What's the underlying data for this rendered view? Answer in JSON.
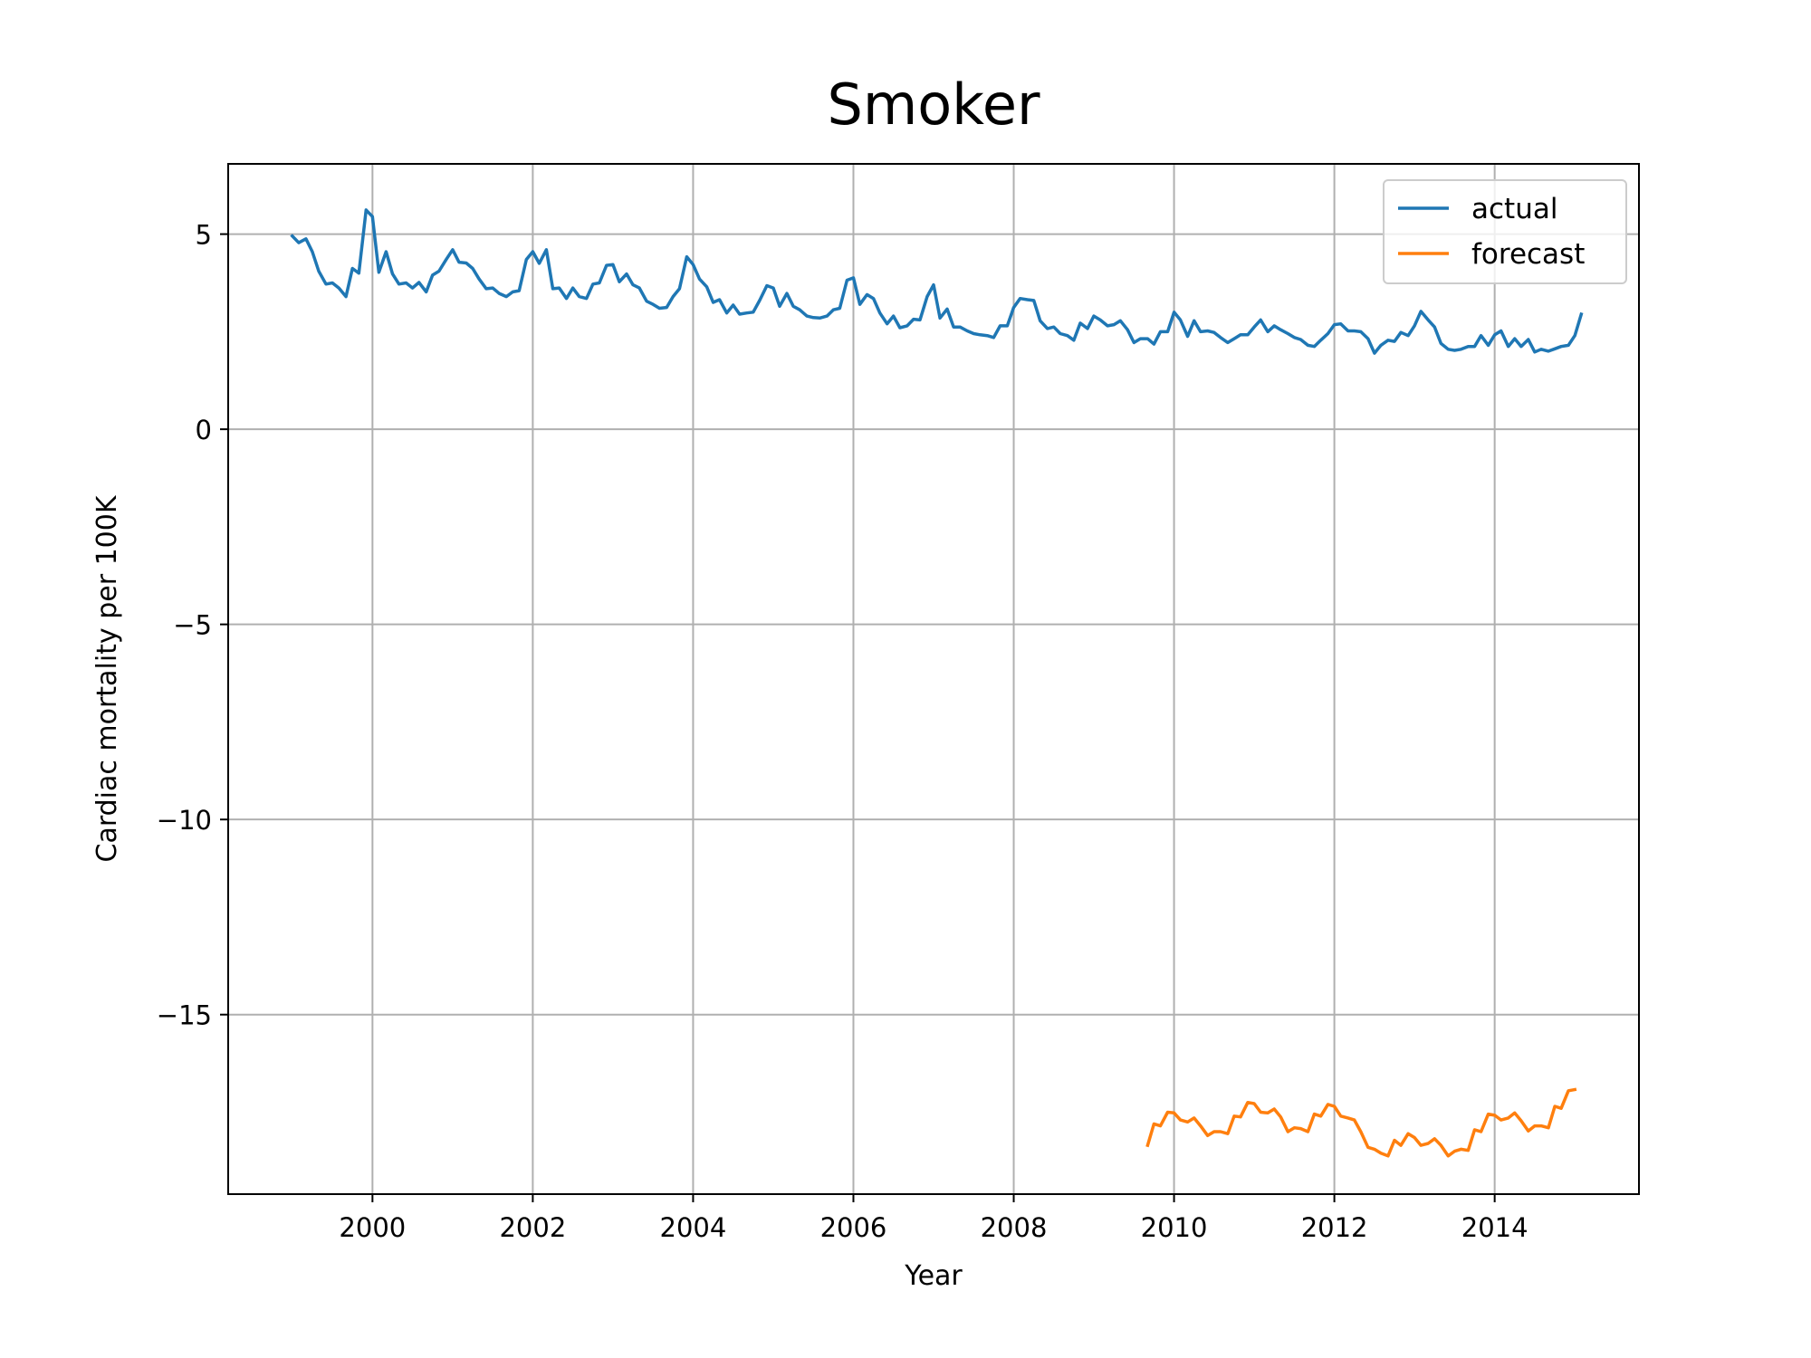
{
  "chart_data": {
    "type": "line",
    "title": "Smoker",
    "xlabel": "Year",
    "ylabel": "Cardiac mortality per 100K",
    "xlim": [
      1998.2,
      2015.8
    ],
    "ylim": [
      -19.6,
      6.8
    ],
    "xticks": [
      2000,
      2002,
      2004,
      2006,
      2008,
      2010,
      2012,
      2014
    ],
    "yticks": [
      5,
      0,
      -5,
      -10,
      -15
    ],
    "ytick_labels": [
      "5",
      "0",
      "−5",
      "−10",
      "−15"
    ],
    "grid": true,
    "legend_position": "top-right",
    "series": [
      {
        "name": "actual",
        "color": "#1f77b4",
        "points": [
          [
            1999.0,
            4.95
          ],
          [
            1999.08,
            4.78
          ],
          [
            1999.17,
            4.88
          ],
          [
            1999.25,
            4.55
          ],
          [
            1999.33,
            4.05
          ],
          [
            1999.42,
            3.72
          ],
          [
            1999.5,
            3.75
          ],
          [
            1999.58,
            3.62
          ],
          [
            1999.67,
            3.4
          ],
          [
            1999.75,
            4.12
          ],
          [
            1999.83,
            4.0
          ],
          [
            1999.92,
            5.62
          ],
          [
            2000.0,
            5.45
          ],
          [
            2000.08,
            4.02
          ],
          [
            2000.17,
            4.55
          ],
          [
            2000.25,
            3.98
          ],
          [
            2000.33,
            3.72
          ],
          [
            2000.42,
            3.75
          ],
          [
            2000.5,
            3.62
          ],
          [
            2000.58,
            3.76
          ],
          [
            2000.67,
            3.52
          ],
          [
            2000.75,
            3.95
          ],
          [
            2000.83,
            4.05
          ],
          [
            2000.92,
            4.35
          ],
          [
            2001.0,
            4.6
          ],
          [
            2001.08,
            4.28
          ],
          [
            2001.17,
            4.26
          ],
          [
            2001.25,
            4.12
          ],
          [
            2001.33,
            3.85
          ],
          [
            2001.42,
            3.6
          ],
          [
            2001.5,
            3.62
          ],
          [
            2001.58,
            3.48
          ],
          [
            2001.67,
            3.4
          ],
          [
            2001.75,
            3.52
          ],
          [
            2001.83,
            3.55
          ],
          [
            2001.92,
            4.35
          ],
          [
            2002.0,
            4.55
          ],
          [
            2002.08,
            4.25
          ],
          [
            2002.17,
            4.6
          ],
          [
            2002.25,
            3.6
          ],
          [
            2002.33,
            3.62
          ],
          [
            2002.42,
            3.35
          ],
          [
            2002.5,
            3.62
          ],
          [
            2002.58,
            3.4
          ],
          [
            2002.67,
            3.35
          ],
          [
            2002.75,
            3.72
          ],
          [
            2002.83,
            3.75
          ],
          [
            2002.92,
            4.2
          ],
          [
            2003.0,
            4.22
          ],
          [
            2003.08,
            3.78
          ],
          [
            2003.17,
            3.98
          ],
          [
            2003.25,
            3.7
          ],
          [
            2003.33,
            3.62
          ],
          [
            2003.42,
            3.28
          ],
          [
            2003.5,
            3.2
          ],
          [
            2003.58,
            3.1
          ],
          [
            2003.67,
            3.12
          ],
          [
            2003.75,
            3.4
          ],
          [
            2003.83,
            3.6
          ],
          [
            2003.92,
            4.42
          ],
          [
            2004.0,
            4.22
          ],
          [
            2004.08,
            3.85
          ],
          [
            2004.17,
            3.65
          ],
          [
            2004.25,
            3.25
          ],
          [
            2004.33,
            3.32
          ],
          [
            2004.42,
            2.98
          ],
          [
            2004.5,
            3.18
          ],
          [
            2004.58,
            2.95
          ],
          [
            2004.67,
            2.98
          ],
          [
            2004.75,
            3.0
          ],
          [
            2004.83,
            3.3
          ],
          [
            2004.92,
            3.68
          ],
          [
            2005.0,
            3.62
          ],
          [
            2005.08,
            3.15
          ],
          [
            2005.17,
            3.48
          ],
          [
            2005.25,
            3.15
          ],
          [
            2005.33,
            3.06
          ],
          [
            2005.42,
            2.9
          ],
          [
            2005.5,
            2.86
          ],
          [
            2005.58,
            2.85
          ],
          [
            2005.67,
            2.9
          ],
          [
            2005.75,
            3.06
          ],
          [
            2005.83,
            3.1
          ],
          [
            2005.92,
            3.82
          ],
          [
            2006.0,
            3.88
          ],
          [
            2006.08,
            3.2
          ],
          [
            2006.17,
            3.45
          ],
          [
            2006.25,
            3.35
          ],
          [
            2006.33,
            2.98
          ],
          [
            2006.42,
            2.7
          ],
          [
            2006.5,
            2.9
          ],
          [
            2006.58,
            2.6
          ],
          [
            2006.67,
            2.65
          ],
          [
            2006.75,
            2.82
          ],
          [
            2006.83,
            2.8
          ],
          [
            2006.92,
            3.4
          ],
          [
            2007.0,
            3.7
          ],
          [
            2007.08,
            2.85
          ],
          [
            2007.17,
            3.08
          ],
          [
            2007.25,
            2.62
          ],
          [
            2007.33,
            2.62
          ],
          [
            2007.42,
            2.52
          ],
          [
            2007.5,
            2.45
          ],
          [
            2007.58,
            2.42
          ],
          [
            2007.67,
            2.4
          ],
          [
            2007.75,
            2.35
          ],
          [
            2007.83,
            2.65
          ],
          [
            2007.92,
            2.65
          ],
          [
            2008.0,
            3.12
          ],
          [
            2008.08,
            3.35
          ],
          [
            2008.17,
            3.32
          ],
          [
            2008.25,
            3.3
          ],
          [
            2008.33,
            2.78
          ],
          [
            2008.42,
            2.58
          ],
          [
            2008.5,
            2.62
          ],
          [
            2008.58,
            2.45
          ],
          [
            2008.67,
            2.4
          ],
          [
            2008.75,
            2.28
          ],
          [
            2008.83,
            2.72
          ],
          [
            2008.92,
            2.58
          ],
          [
            2009.0,
            2.9
          ],
          [
            2009.08,
            2.8
          ],
          [
            2009.17,
            2.65
          ],
          [
            2009.25,
            2.68
          ],
          [
            2009.33,
            2.78
          ],
          [
            2009.42,
            2.55
          ],
          [
            2009.5,
            2.22
          ],
          [
            2009.58,
            2.32
          ],
          [
            2009.67,
            2.32
          ],
          [
            2009.75,
            2.18
          ],
          [
            2009.83,
            2.5
          ],
          [
            2009.92,
            2.5
          ],
          [
            2010.0,
            3.0
          ],
          [
            2010.08,
            2.8
          ],
          [
            2010.17,
            2.38
          ],
          [
            2010.25,
            2.78
          ],
          [
            2010.33,
            2.5
          ],
          [
            2010.42,
            2.52
          ],
          [
            2010.5,
            2.48
          ],
          [
            2010.58,
            2.35
          ],
          [
            2010.67,
            2.22
          ],
          [
            2010.75,
            2.32
          ],
          [
            2010.83,
            2.42
          ],
          [
            2010.92,
            2.42
          ],
          [
            2011.0,
            2.62
          ],
          [
            2011.08,
            2.8
          ],
          [
            2011.17,
            2.5
          ],
          [
            2011.25,
            2.65
          ],
          [
            2011.33,
            2.55
          ],
          [
            2011.42,
            2.45
          ],
          [
            2011.5,
            2.35
          ],
          [
            2011.58,
            2.3
          ],
          [
            2011.67,
            2.15
          ],
          [
            2011.75,
            2.12
          ],
          [
            2011.83,
            2.28
          ],
          [
            2011.92,
            2.45
          ],
          [
            2012.0,
            2.68
          ],
          [
            2012.08,
            2.7
          ],
          [
            2012.17,
            2.52
          ],
          [
            2012.25,
            2.52
          ],
          [
            2012.33,
            2.5
          ],
          [
            2012.42,
            2.32
          ],
          [
            2012.5,
            1.95
          ],
          [
            2012.58,
            2.15
          ],
          [
            2012.67,
            2.28
          ],
          [
            2012.75,
            2.25
          ],
          [
            2012.83,
            2.48
          ],
          [
            2012.92,
            2.4
          ],
          [
            2013.0,
            2.65
          ],
          [
            2013.08,
            3.02
          ],
          [
            2013.17,
            2.8
          ],
          [
            2013.25,
            2.62
          ],
          [
            2013.33,
            2.2
          ],
          [
            2013.42,
            2.05
          ],
          [
            2013.5,
            2.02
          ],
          [
            2013.58,
            2.05
          ],
          [
            2013.67,
            2.12
          ],
          [
            2013.75,
            2.12
          ],
          [
            2013.83,
            2.4
          ],
          [
            2013.92,
            2.15
          ],
          [
            2014.0,
            2.42
          ],
          [
            2014.08,
            2.52
          ],
          [
            2014.17,
            2.12
          ],
          [
            2014.25,
            2.32
          ],
          [
            2014.33,
            2.12
          ],
          [
            2014.42,
            2.3
          ],
          [
            2014.5,
            1.98
          ],
          [
            2014.58,
            2.05
          ],
          [
            2014.67,
            2.0
          ],
          [
            2014.75,
            2.06
          ],
          [
            2014.83,
            2.12
          ],
          [
            2014.92,
            2.15
          ],
          [
            2015.0,
            2.4
          ],
          [
            2015.08,
            2.95
          ]
        ]
      },
      {
        "name": "forecast",
        "color": "#ff7f0e",
        "points": [
          [
            2009.67,
            -18.35
          ],
          [
            2009.75,
            -17.8
          ],
          [
            2009.83,
            -17.85
          ],
          [
            2009.92,
            -17.5
          ],
          [
            2010.0,
            -17.52
          ],
          [
            2010.08,
            -17.7
          ],
          [
            2010.17,
            -17.75
          ],
          [
            2010.25,
            -17.65
          ],
          [
            2010.33,
            -17.85
          ],
          [
            2010.42,
            -18.1
          ],
          [
            2010.5,
            -18.0
          ],
          [
            2010.58,
            -18.0
          ],
          [
            2010.67,
            -18.05
          ],
          [
            2010.75,
            -17.6
          ],
          [
            2010.83,
            -17.62
          ],
          [
            2010.92,
            -17.25
          ],
          [
            2011.0,
            -17.28
          ],
          [
            2011.08,
            -17.5
          ],
          [
            2011.17,
            -17.52
          ],
          [
            2011.25,
            -17.42
          ],
          [
            2011.33,
            -17.62
          ],
          [
            2011.42,
            -18.0
          ],
          [
            2011.5,
            -17.9
          ],
          [
            2011.58,
            -17.92
          ],
          [
            2011.67,
            -18.0
          ],
          [
            2011.75,
            -17.55
          ],
          [
            2011.83,
            -17.6
          ],
          [
            2011.92,
            -17.3
          ],
          [
            2012.0,
            -17.35
          ],
          [
            2012.08,
            -17.6
          ],
          [
            2012.17,
            -17.65
          ],
          [
            2012.25,
            -17.7
          ],
          [
            2012.33,
            -18.0
          ],
          [
            2012.42,
            -18.4
          ],
          [
            2012.5,
            -18.45
          ],
          [
            2012.58,
            -18.55
          ],
          [
            2012.67,
            -18.62
          ],
          [
            2012.75,
            -18.22
          ],
          [
            2012.83,
            -18.35
          ],
          [
            2012.92,
            -18.05
          ],
          [
            2013.0,
            -18.15
          ],
          [
            2013.08,
            -18.35
          ],
          [
            2013.17,
            -18.3
          ],
          [
            2013.25,
            -18.18
          ],
          [
            2013.33,
            -18.35
          ],
          [
            2013.42,
            -18.62
          ],
          [
            2013.5,
            -18.5
          ],
          [
            2013.58,
            -18.45
          ],
          [
            2013.67,
            -18.48
          ],
          [
            2013.75,
            -17.95
          ],
          [
            2013.83,
            -18.0
          ],
          [
            2013.92,
            -17.55
          ],
          [
            2014.0,
            -17.58
          ],
          [
            2014.08,
            -17.7
          ],
          [
            2014.17,
            -17.65
          ],
          [
            2014.25,
            -17.52
          ],
          [
            2014.33,
            -17.72
          ],
          [
            2014.42,
            -17.98
          ],
          [
            2014.5,
            -17.85
          ],
          [
            2014.58,
            -17.85
          ],
          [
            2014.67,
            -17.9
          ],
          [
            2014.75,
            -17.35
          ],
          [
            2014.83,
            -17.4
          ],
          [
            2014.92,
            -16.95
          ],
          [
            2015.0,
            -16.92
          ]
        ]
      }
    ]
  }
}
